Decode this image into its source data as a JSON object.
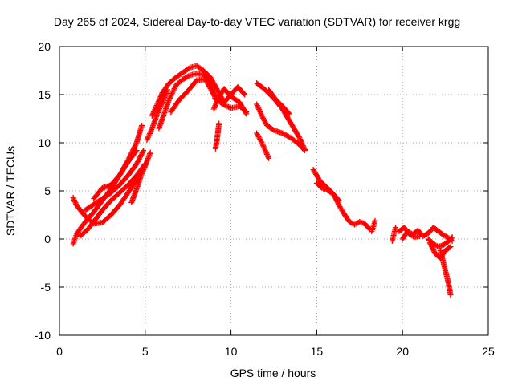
{
  "chart_data": {
    "type": "scatter",
    "title": "Day 265 of 2024, Sidereal Day-to-day VTEC variation (SDTVAR) for receiver krgg",
    "xlabel": "GPS time / hours",
    "ylabel": "SDTVAR / TECUs",
    "xlim": [
      0,
      25
    ],
    "ylim": [
      -10,
      20
    ],
    "xticks": [
      0,
      5,
      10,
      15,
      20,
      25
    ],
    "yticks": [
      -10,
      -5,
      0,
      5,
      10,
      15,
      20
    ],
    "grid": true,
    "marker": "+",
    "series": [
      {
        "name": "SDTVAR",
        "color": "#ff0000",
        "tracks": [
          {
            "x": [
              0.8,
              1.0,
              1.3,
              1.6,
              2.0,
              2.5,
              3.0,
              3.5,
              4.0,
              4.5,
              5.0
            ],
            "y": [
              4.3,
              3.5,
              2.8,
              2.2,
              1.6,
              1.7,
              2.5,
              3.5,
              4.8,
              6.2,
              7.8
            ]
          },
          {
            "x": [
              0.8,
              1.0,
              1.3,
              1.6,
              2.0,
              2.5,
              3.0,
              3.5,
              4.0,
              4.5,
              4.8
            ],
            "y": [
              -0.5,
              0.5,
              1.3,
              2.0,
              2.8,
              4.0,
              5.2,
              6.6,
              8.2,
              10.0,
              11.8
            ]
          },
          {
            "x": [
              1.2,
              1.6,
              2.0,
              2.5,
              3.0,
              3.5,
              4.0,
              4.5,
              5.0
            ],
            "y": [
              0.3,
              0.9,
              1.8,
              3.0,
              4.0,
              4.8,
              5.6,
              6.6,
              7.8
            ]
          },
          {
            "x": [
              1.5,
              2.0,
              2.5,
              3.0,
              3.5,
              4.0,
              4.5,
              4.9
            ],
            "y": [
              3.0,
              3.6,
              4.2,
              4.8,
              5.6,
              6.6,
              7.8,
              9.2
            ]
          },
          {
            "x": [
              2.0,
              2.5,
              3.0,
              3.5,
              4.0,
              4.5
            ],
            "y": [
              4.2,
              5.3,
              5.6,
              6.6,
              8.0,
              9.2
            ]
          },
          {
            "x": [
              4.2,
              4.5,
              4.8,
              5.0,
              5.3
            ],
            "y": [
              3.8,
              5.2,
              6.8,
              7.6,
              9.0
            ]
          },
          {
            "x": [
              5.1,
              5.4,
              5.7,
              6.0,
              6.3
            ],
            "y": [
              10.3,
              11.5,
              13.0,
              14.2,
              15.5
            ]
          },
          {
            "x": [
              5.4,
              5.7,
              6.0,
              6.4,
              6.8,
              7.2,
              7.6,
              8.0,
              8.4,
              8.8,
              9.2,
              9.6,
              10.0,
              10.4,
              10.8
            ],
            "y": [
              12.8,
              14.0,
              15.2,
              16.2,
              16.8,
              17.3,
              17.8,
              18.0,
              17.5,
              16.8,
              15.5,
              14.2,
              15.0,
              15.8,
              15.0
            ]
          },
          {
            "x": [
              5.8,
              6.1,
              6.4,
              6.8,
              7.2,
              7.6,
              8.0,
              8.4,
              8.8,
              9.1
            ],
            "y": [
              11.5,
              13.0,
              14.5,
              16.0,
              16.6,
              17.0,
              17.2,
              17.1,
              16.2,
              14.5
            ]
          },
          {
            "x": [
              6.5,
              7.0,
              7.5,
              8.0,
              8.5,
              9.0,
              9.5,
              10.0,
              10.5,
              10.9
            ],
            "y": [
              13.2,
              14.5,
              15.4,
              16.5,
              16.6,
              15.0,
              14.0,
              13.6,
              13.8,
              13.2
            ]
          },
          {
            "x": [
              9.0,
              9.3,
              9.6,
              10.0,
              10.5,
              10.9
            ],
            "y": [
              13.5,
              14.8,
              15.6,
              14.8,
              14.2,
              13.0
            ]
          },
          {
            "x": [
              9.1,
              9.2,
              9.3
            ],
            "y": [
              9.4,
              10.5,
              12.0
            ]
          },
          {
            "x": [
              11.5,
              12.0,
              12.5,
              13.0,
              13.5,
              14.0,
              14.3
            ],
            "y": [
              16.2,
              15.5,
              14.6,
              13.5,
              12.0,
              10.5,
              9.3
            ]
          },
          {
            "x": [
              11.5,
              11.8,
              12.1,
              12.5,
              13.0,
              13.5,
              14.0,
              14.3
            ],
            "y": [
              14.0,
              12.8,
              11.8,
              11.3,
              11.0,
              10.5,
              9.8,
              9.2
            ]
          },
          {
            "x": [
              11.5,
              11.8,
              12.0,
              12.2
            ],
            "y": [
              11.0,
              10.0,
              9.2,
              8.4
            ]
          },
          {
            "x": [
              12.2,
              12.6,
              13.0,
              13.4
            ],
            "y": [
              15.5,
              14.5,
              13.8,
              13.0
            ]
          },
          {
            "x": [
              14.8,
              15.0,
              15.2,
              15.5,
              15.8,
              16.0,
              16.3,
              16.6,
              16.9,
              17.2,
              17.5,
              17.8,
              18.1
            ],
            "y": [
              7.2,
              6.6,
              6.0,
              5.5,
              5.0,
              4.6,
              3.5,
              2.6,
              1.8,
              1.5,
              1.8,
              1.6,
              1.0
            ]
          },
          {
            "x": [
              15.0,
              15.3,
              15.7,
              16.0,
              16.3
            ],
            "y": [
              5.8,
              5.3,
              5.0,
              4.6,
              4.0
            ]
          },
          {
            "x": [
              18.2,
              18.3,
              18.4
            ],
            "y": [
              0.8,
              1.3,
              1.9
            ]
          },
          {
            "x": [
              19.4,
              19.5,
              19.6
            ],
            "y": [
              -0.2,
              0.5,
              1.2
            ]
          },
          {
            "x": [
              19.8,
              20.1,
              20.4,
              20.7,
              21.0
            ],
            "y": [
              0.8,
              1.2,
              0.5,
              0.2,
              0.3
            ]
          },
          {
            "x": [
              20.0,
              20.3,
              20.6,
              20.9,
              21.2,
              21.5,
              21.8,
              22.1,
              22.4,
              22.7,
              22.9
            ],
            "y": [
              0.0,
              0.8,
              0.5,
              0.9,
              0.3,
              0.6,
              1.2,
              0.8,
              0.4,
              0.1,
              -0.2
            ]
          },
          {
            "x": [
              21.5,
              21.8,
              22.1,
              22.4,
              22.7,
              22.9
            ],
            "y": [
              0.0,
              -0.5,
              -0.8,
              -0.6,
              -0.2,
              0.2
            ]
          },
          {
            "x": [
              21.6,
              21.9,
              22.2,
              22.5,
              22.8
            ],
            "y": [
              -0.4,
              -1.5,
              -2.0,
              -1.2,
              -0.8
            ]
          },
          {
            "x": [
              22.2,
              22.3,
              22.4,
              22.5,
              22.6,
              22.7,
              22.8
            ],
            "y": [
              -1.2,
              -1.8,
              -2.6,
              -3.3,
              -4.0,
              -4.8,
              -5.8
            ]
          }
        ]
      }
    ]
  }
}
